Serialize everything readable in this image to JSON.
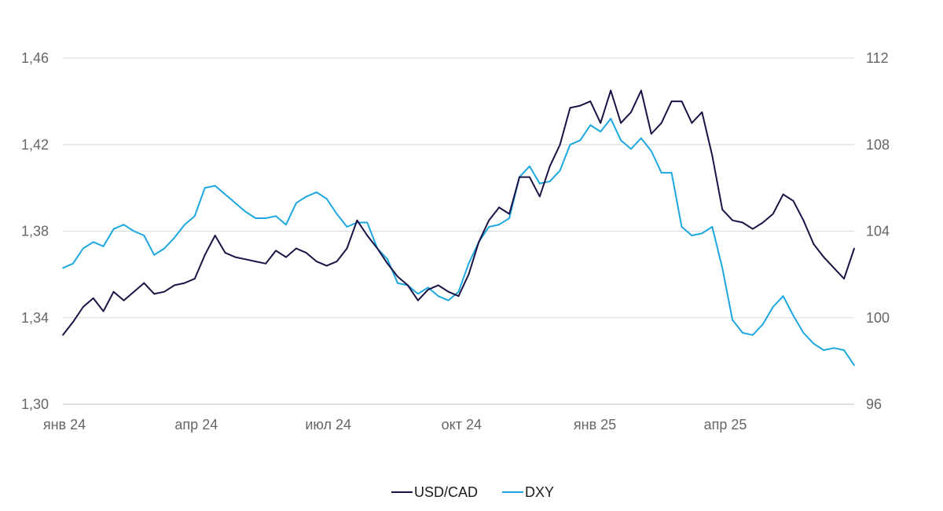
{
  "chart_data": {
    "type": "line",
    "title": "",
    "xlabel": "",
    "ylabel": "",
    "x_tick_labels": [
      "янв 24",
      "апр 24",
      "июл 24",
      "окт 24",
      "янв 25",
      "апр 25"
    ],
    "y_left": {
      "ticks": [
        "1,30",
        "1,34",
        "1,38",
        "1,42",
        "1,46"
      ],
      "ylim": [
        1.3,
        1.46
      ]
    },
    "y_right": {
      "ticks": [
        "96",
        "100",
        "104",
        "108",
        "112"
      ],
      "ylim": [
        96,
        112
      ]
    },
    "grid": true,
    "legend_position": "bottom-center",
    "x_start_label": "янв 24",
    "x_end": "2025-06-30",
    "series": [
      {
        "name": "USD/CAD",
        "axis": "left",
        "color": "#1a1446",
        "x": [
          "2024-01-01",
          "2024-01-08",
          "2024-01-15",
          "2024-01-22",
          "2024-01-29",
          "2024-02-05",
          "2024-02-12",
          "2024-02-19",
          "2024-02-26",
          "2024-03-04",
          "2024-03-11",
          "2024-03-18",
          "2024-03-25",
          "2024-04-01",
          "2024-04-08",
          "2024-04-15",
          "2024-04-22",
          "2024-04-29",
          "2024-05-06",
          "2024-05-13",
          "2024-05-20",
          "2024-05-27",
          "2024-06-03",
          "2024-06-10",
          "2024-06-17",
          "2024-06-24",
          "2024-07-01",
          "2024-07-08",
          "2024-07-15",
          "2024-07-22",
          "2024-07-29",
          "2024-08-05",
          "2024-08-12",
          "2024-08-19",
          "2024-08-26",
          "2024-09-02",
          "2024-09-09",
          "2024-09-16",
          "2024-09-23",
          "2024-09-30",
          "2024-10-07",
          "2024-10-14",
          "2024-10-21",
          "2024-10-28",
          "2024-11-04",
          "2024-11-11",
          "2024-11-18",
          "2024-11-25",
          "2024-12-02",
          "2024-12-09",
          "2024-12-16",
          "2024-12-23",
          "2024-12-30",
          "2025-01-06",
          "2025-01-13",
          "2025-01-20",
          "2025-01-27",
          "2025-02-03",
          "2025-02-10",
          "2025-02-17",
          "2025-02-24",
          "2025-03-03",
          "2025-03-10",
          "2025-03-17",
          "2025-03-24",
          "2025-03-31",
          "2025-04-07",
          "2025-04-14",
          "2025-04-21",
          "2025-04-28",
          "2025-05-05",
          "2025-05-12",
          "2025-05-19",
          "2025-05-26",
          "2025-06-02",
          "2025-06-09",
          "2025-06-16",
          "2025-06-23",
          "2025-06-30"
        ],
        "values": [
          1.332,
          1.338,
          1.345,
          1.349,
          1.343,
          1.352,
          1.348,
          1.352,
          1.356,
          1.351,
          1.352,
          1.355,
          1.356,
          1.358,
          1.369,
          1.378,
          1.37,
          1.368,
          1.367,
          1.366,
          1.365,
          1.371,
          1.368,
          1.372,
          1.37,
          1.366,
          1.364,
          1.366,
          1.372,
          1.385,
          1.378,
          1.372,
          1.365,
          1.359,
          1.355,
          1.348,
          1.353,
          1.355,
          1.352,
          1.35,
          1.36,
          1.375,
          1.385,
          1.391,
          1.388,
          1.405,
          1.405,
          1.396,
          1.41,
          1.42,
          1.437,
          1.438,
          1.44,
          1.43,
          1.445,
          1.43,
          1.435,
          1.445,
          1.425,
          1.43,
          1.44,
          1.44,
          1.43,
          1.435,
          1.415,
          1.39,
          1.385,
          1.384,
          1.381,
          1.384,
          1.388,
          1.397,
          1.394,
          1.385,
          1.374,
          1.368,
          1.363,
          1.358,
          1.372
        ]
      },
      {
        "name": "DXY",
        "axis": "right",
        "color": "#1ca7e0",
        "x": [
          "2024-01-01",
          "2024-01-08",
          "2024-01-15",
          "2024-01-22",
          "2024-01-29",
          "2024-02-05",
          "2024-02-12",
          "2024-02-19",
          "2024-02-26",
          "2024-03-04",
          "2024-03-11",
          "2024-03-18",
          "2024-03-25",
          "2024-04-01",
          "2024-04-08",
          "2024-04-15",
          "2024-04-22",
          "2024-04-29",
          "2024-05-06",
          "2024-05-13",
          "2024-05-20",
          "2024-05-27",
          "2024-06-03",
          "2024-06-10",
          "2024-06-17",
          "2024-06-24",
          "2024-07-01",
          "2024-07-08",
          "2024-07-15",
          "2024-07-22",
          "2024-07-29",
          "2024-08-05",
          "2024-08-12",
          "2024-08-19",
          "2024-08-26",
          "2024-09-02",
          "2024-09-09",
          "2024-09-16",
          "2024-09-23",
          "2024-09-30",
          "2024-10-07",
          "2024-10-14",
          "2024-10-21",
          "2024-10-28",
          "2024-11-04",
          "2024-11-11",
          "2024-11-18",
          "2024-11-25",
          "2024-12-02",
          "2024-12-09",
          "2024-12-16",
          "2024-12-23",
          "2024-12-30",
          "2025-01-06",
          "2025-01-13",
          "2025-01-20",
          "2025-01-27",
          "2025-02-03",
          "2025-02-10",
          "2025-02-17",
          "2025-02-24",
          "2025-03-03",
          "2025-03-10",
          "2025-03-17",
          "2025-03-24",
          "2025-03-31",
          "2025-04-07",
          "2025-04-14",
          "2025-04-21",
          "2025-04-28",
          "2025-05-05",
          "2025-05-12",
          "2025-05-19",
          "2025-05-26",
          "2025-06-02",
          "2025-06-09",
          "2025-06-16",
          "2025-06-23",
          "2025-06-30"
        ],
        "values": [
          102.3,
          102.5,
          103.2,
          103.5,
          103.3,
          104.1,
          104.3,
          104.0,
          103.8,
          102.9,
          103.2,
          103.7,
          104.3,
          104.7,
          106.0,
          106.1,
          105.7,
          105.3,
          104.9,
          104.6,
          104.6,
          104.7,
          104.3,
          105.3,
          105.6,
          105.8,
          105.5,
          104.8,
          104.2,
          104.4,
          104.4,
          103.2,
          102.7,
          101.6,
          101.5,
          101.1,
          101.4,
          101.0,
          100.8,
          101.2,
          102.5,
          103.5,
          104.2,
          104.3,
          104.6,
          106.5,
          107.0,
          106.2,
          106.3,
          106.8,
          108.0,
          108.2,
          108.9,
          108.6,
          109.2,
          108.2,
          107.8,
          108.3,
          107.7,
          106.7,
          106.7,
          104.2,
          103.8,
          103.9,
          104.2,
          102.3,
          99.9,
          99.3,
          99.2,
          99.7,
          100.5,
          101.0,
          100.1,
          99.3,
          98.8,
          98.5,
          98.6,
          98.5,
          97.8
        ]
      }
    ]
  }
}
